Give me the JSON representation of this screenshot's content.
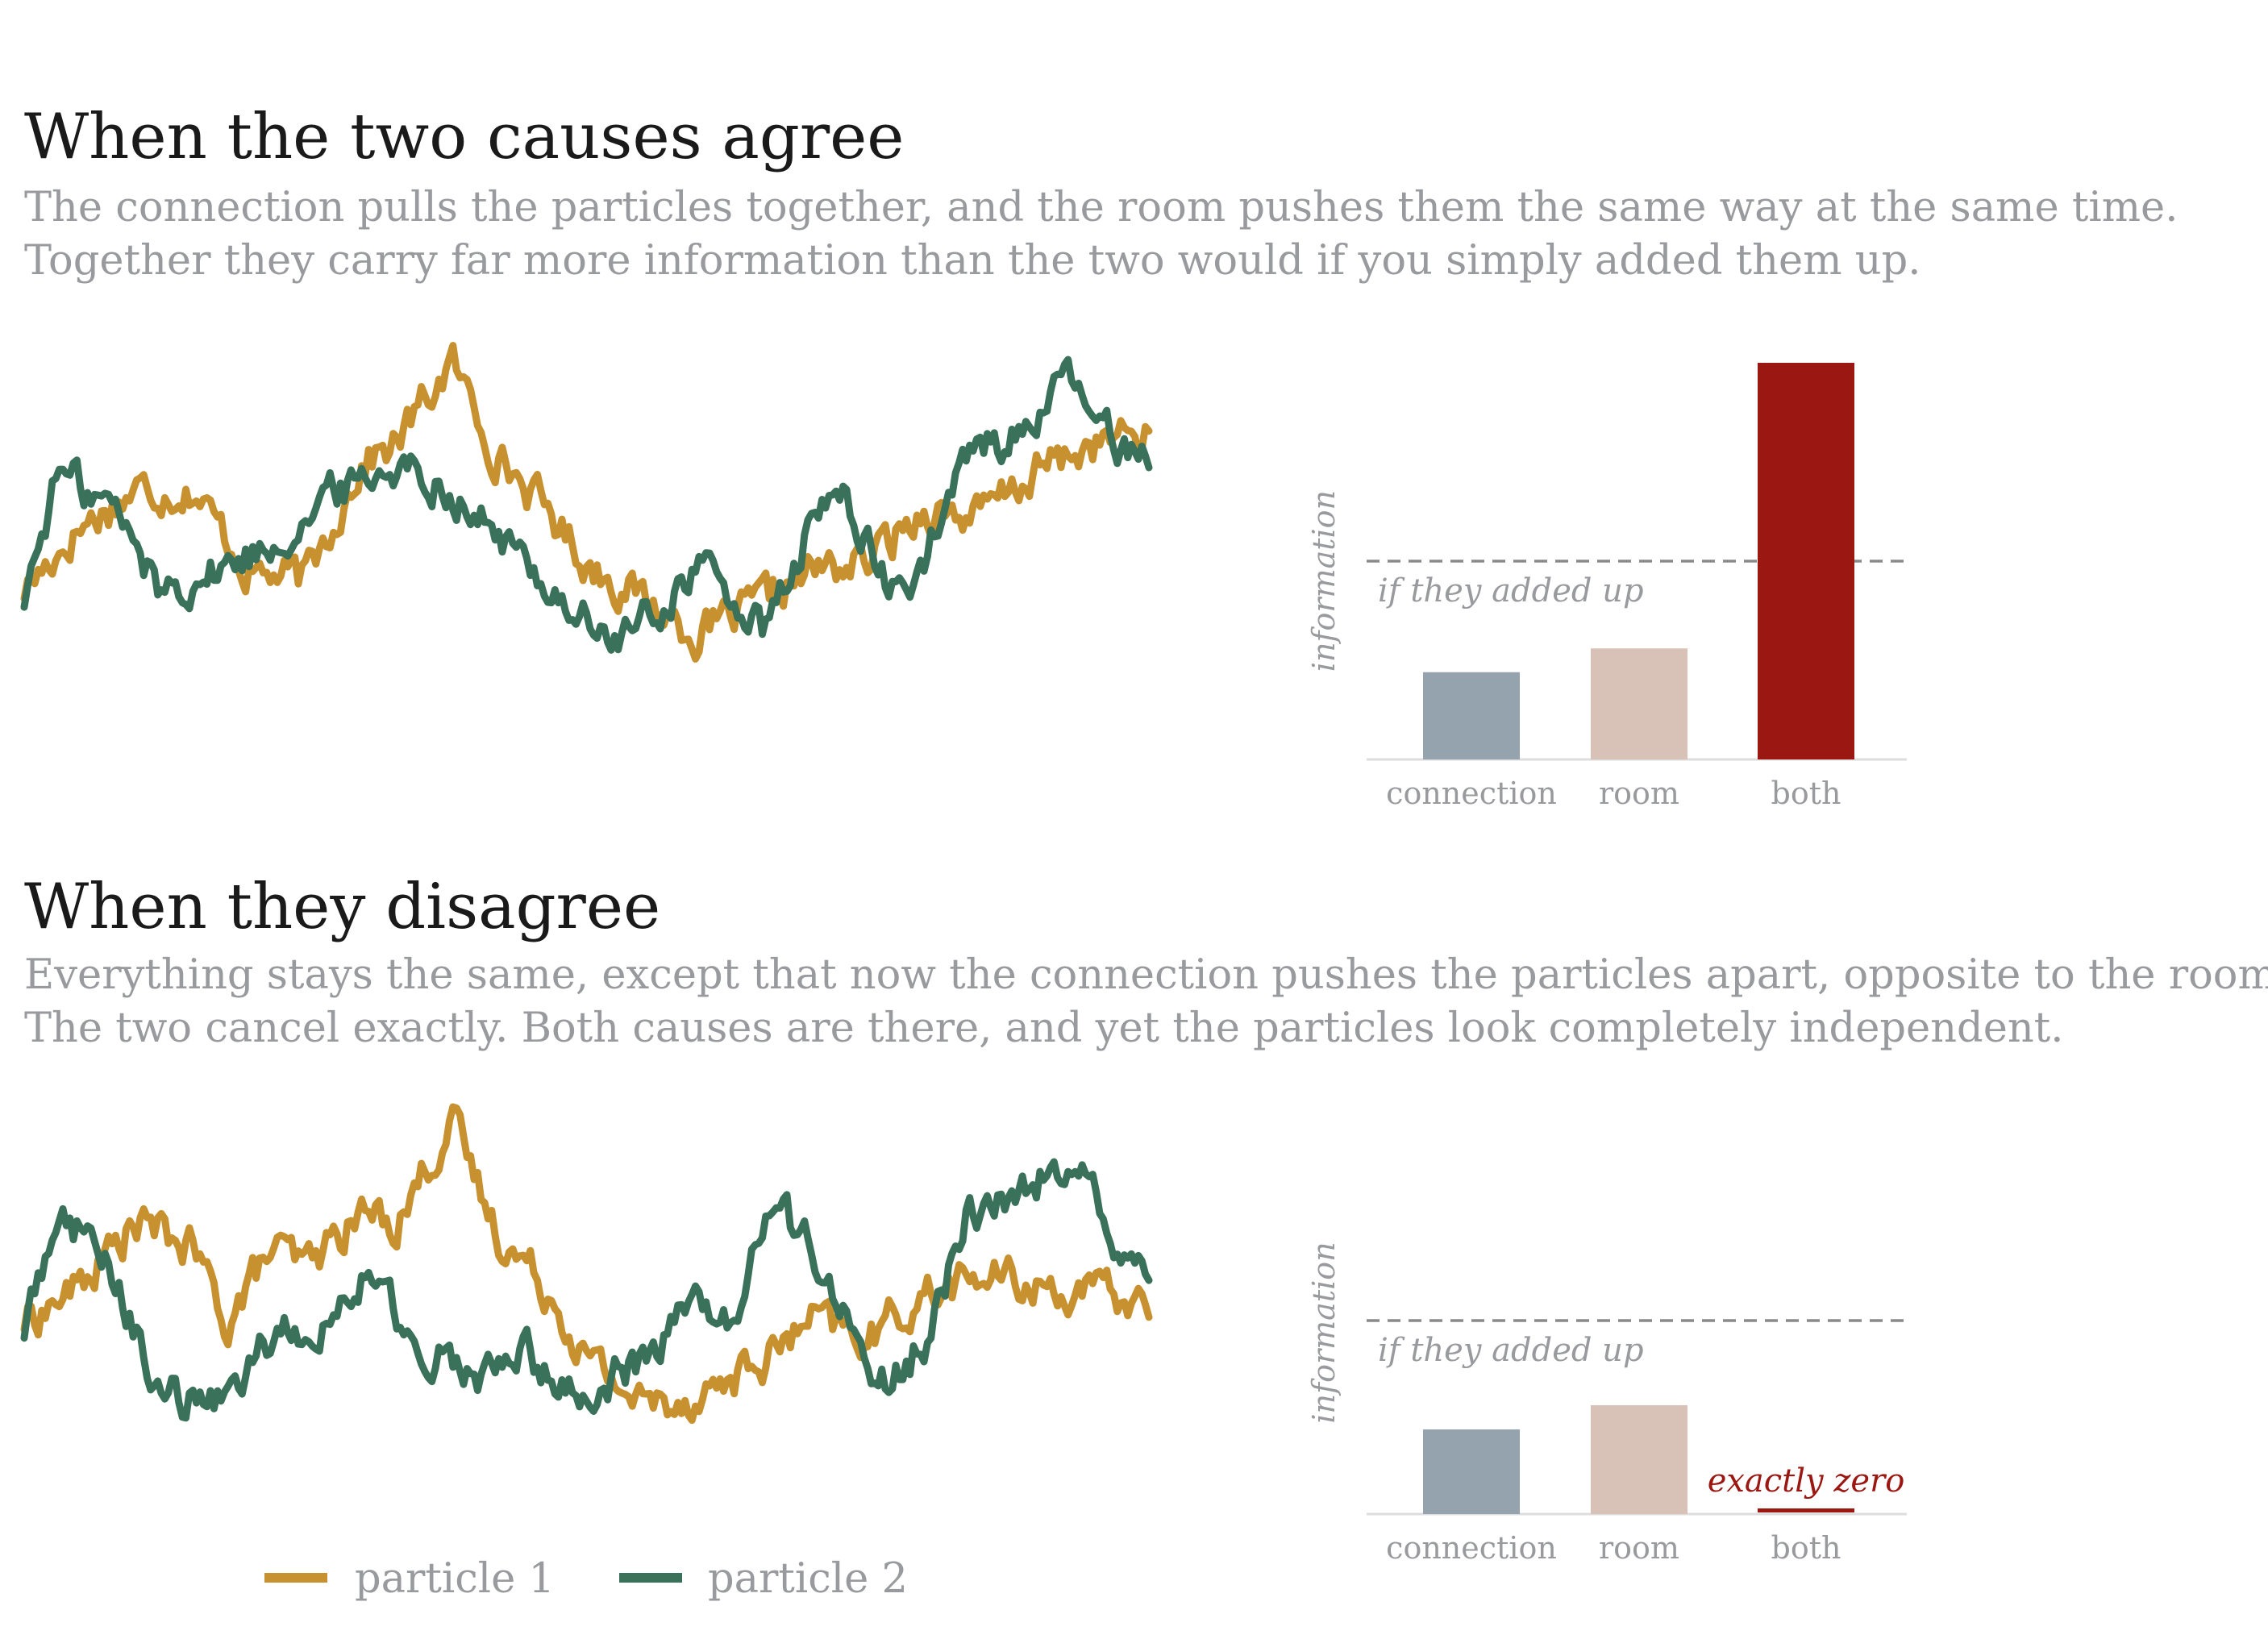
{
  "panels": [
    {
      "title": "When the two causes agree",
      "subtitle_lines": [
        "The connection pulls the particles together, and the room pushes them the same way at the same time.",
        "Together they carry far more information than the two would if you simply added them up."
      ]
    },
    {
      "title": "When they disagree",
      "subtitle_lines": [
        "Everything stays the same, except that now the connection pushes the particles apart, opposite to the room.",
        "The two cancel exactly. Both causes are there, and yet the particles look completely independent."
      ]
    }
  ],
  "legend": [
    {
      "label": "particle 1",
      "color": "#c8912f"
    },
    {
      "label": "particle 2",
      "color": "#3a715a"
    }
  ],
  "colors": {
    "particle1": "#c8912f",
    "particle2": "#3a715a",
    "connection": "#94a3ae",
    "room": "#d8c2b8",
    "both": "#9b1812",
    "reference_line": "#8a8a8a",
    "axis": "#dddddd"
  },
  "chart_data": [
    {
      "type": "line",
      "panel": "agree",
      "x_range": [
        0,
        1
      ],
      "y_range": [
        -1,
        1
      ],
      "series": [
        {
          "name": "particle 1",
          "x": [
            0,
            0.05,
            0.1,
            0.15,
            0.2,
            0.25,
            0.3,
            0.33,
            0.38,
            0.42,
            0.47,
            0.5,
            0.55,
            0.6,
            0.65,
            0.7,
            0.75,
            0.8,
            0.85,
            0.9,
            0.95,
            1
          ],
          "y": [
            -0.25,
            0.1,
            0.3,
            0.3,
            -0.15,
            -0.2,
            0.45,
            0.55,
            1.0,
            0.5,
            0.15,
            -0.1,
            -0.3,
            -0.5,
            -0.35,
            -0.15,
            -0.1,
            0.2,
            0.15,
            0.4,
            0.55,
            0.6
          ]
        },
        {
          "name": "particle 2",
          "x": [
            0,
            0.03,
            0.08,
            0.12,
            0.17,
            0.22,
            0.28,
            0.33,
            0.37,
            0.42,
            0.47,
            0.52,
            0.56,
            0.6,
            0.63,
            0.66,
            0.7,
            0.73,
            0.77,
            0.8,
            0.84,
            0.88,
            0.93,
            0.97,
            1
          ],
          "y": [
            -0.3,
            0.4,
            0.2,
            -0.25,
            -0.15,
            0.0,
            0.3,
            0.45,
            0.35,
            0.05,
            -0.25,
            -0.55,
            -0.4,
            -0.1,
            -0.3,
            -0.5,
            0.1,
            0.3,
            -0.3,
            -0.1,
            0.5,
            0.6,
            0.9,
            0.55,
            0.55
          ]
        }
      ]
    },
    {
      "type": "bar",
      "panel": "agree",
      "ylabel": "information",
      "categories": [
        "connection",
        "room",
        "both"
      ],
      "values": [
        0.22,
        0.28,
        1.0
      ],
      "reference": {
        "label": "if they added up",
        "value": 0.5
      },
      "ylim": [
        0,
        1
      ]
    },
    {
      "type": "line",
      "panel": "disagree",
      "x_range": [
        0,
        1
      ],
      "y_range": [
        -1,
        1
      ],
      "series": [
        {
          "name": "particle 1",
          "x": [
            0,
            0.05,
            0.1,
            0.15,
            0.18,
            0.22,
            0.25,
            0.3,
            0.33,
            0.38,
            0.42,
            0.47,
            0.5,
            0.55,
            0.6,
            0.65,
            0.7,
            0.75,
            0.8,
            0.85,
            0.9,
            0.95,
            1
          ],
          "y": [
            -0.1,
            0.1,
            0.45,
            0.3,
            -0.1,
            0.3,
            0.2,
            0.5,
            0.45,
            1.0,
            0.4,
            0.05,
            -0.3,
            -0.55,
            -0.5,
            -0.35,
            -0.1,
            -0.2,
            0.05,
            0.15,
            0.1,
            0.05,
            0.0
          ]
        },
        {
          "name": "particle 2",
          "x": [
            0,
            0.03,
            0.08,
            0.12,
            0.17,
            0.22,
            0.27,
            0.3,
            0.35,
            0.4,
            0.45,
            0.5,
            0.55,
            0.6,
            0.63,
            0.66,
            0.7,
            0.73,
            0.77,
            0.8,
            0.84,
            0.88,
            0.93,
            0.97,
            1
          ],
          "y": [
            -0.15,
            0.55,
            0.15,
            -0.5,
            -0.55,
            -0.2,
            -0.1,
            0.15,
            -0.2,
            -0.4,
            -0.3,
            -0.5,
            -0.3,
            0.0,
            -0.1,
            0.5,
            0.35,
            -0.1,
            -0.45,
            -0.2,
            0.5,
            0.6,
            0.8,
            0.35,
            0.05
          ]
        }
      ]
    },
    {
      "type": "bar",
      "panel": "disagree",
      "ylabel": "information",
      "categories": [
        "connection",
        "room",
        "both"
      ],
      "values": [
        0.21,
        0.27,
        0.0
      ],
      "reference": {
        "label": "if they added up",
        "value": 0.48
      },
      "annotation": "exactly zero",
      "ylim": [
        0,
        1
      ]
    }
  ]
}
